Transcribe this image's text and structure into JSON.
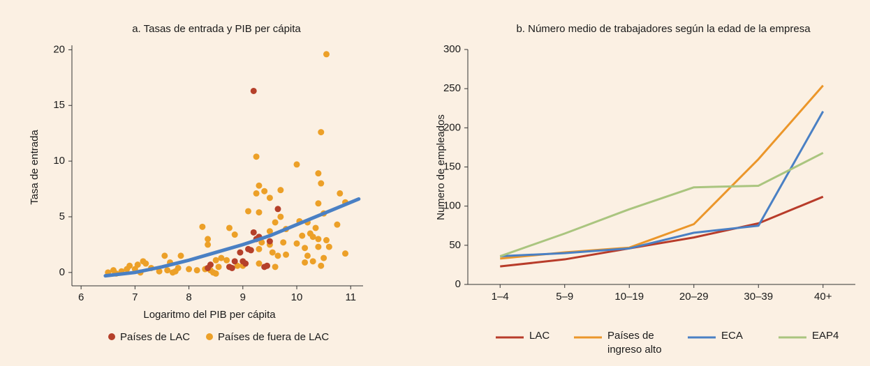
{
  "chart_data": [
    {
      "type": "scatter",
      "title": "a. Tasas de entrada y PIB per cápita",
      "x_label": "Logaritmo del PIB per cápita",
      "y_label": "Tasa de entrada",
      "xlim": [
        5.83,
        11.23
      ],
      "ylim": [
        -1.2,
        20.4
      ],
      "xticks": [
        6,
        7,
        8,
        9,
        10,
        11
      ],
      "yticks": [
        0,
        5,
        10,
        15,
        20
      ],
      "series": [
        {
          "name": "Países de LAC",
          "color": "#b5402a",
          "x": [
            9.2,
            9.65,
            9.2,
            9.25,
            9.3,
            9.1,
            9.5,
            8.95,
            9.0,
            9.05,
            8.85,
            8.75,
            8.8,
            9.4,
            9.45,
            8.35,
            8.4,
            9.15
          ],
          "values": [
            16.3,
            5.7,
            3.6,
            3.0,
            3.2,
            2.1,
            2.8,
            1.8,
            1.0,
            0.8,
            1.0,
            0.5,
            0.4,
            0.5,
            0.6,
            0.4,
            0.7,
            2.0
          ]
        },
        {
          "name": "Países de fuera de LAC",
          "color": "#eca028",
          "x": [
            10.55,
            10.45,
            9.25,
            10.0,
            10.4,
            10.45,
            9.3,
            9.4,
            9.25,
            9.7,
            10.8,
            10.4,
            9.5,
            10.9,
            9.1,
            9.3,
            9.7,
            10.5,
            9.6,
            10.05,
            10.2,
            10.35,
            10.75,
            8.25,
            8.75,
            8.85,
            9.5,
            9.8,
            10.1,
            10.25,
            10.3,
            10.4,
            10.55,
            8.35,
            8.35,
            9.35,
            9.5,
            9.75,
            10.0,
            10.15,
            10.4,
            10.6,
            10.5,
            10.2,
            10.3,
            10.15,
            10.45,
            10.9,
            9.65,
            9.8,
            9.3,
            9.55,
            8.6,
            8.7,
            8.5,
            8.9,
            9.3,
            9.6,
            9.0,
            8.55,
            8.4,
            8.3,
            8.15,
            8.0,
            7.8,
            7.85,
            7.55,
            7.65,
            7.75,
            7.6,
            7.3,
            7.2,
            7.15,
            7.05,
            7.0,
            6.9,
            6.85,
            6.75,
            6.6,
            6.5,
            6.65,
            7.1,
            7.45,
            8.45,
            8.5,
            7.7
          ],
          "values": [
            19.6,
            12.6,
            10.4,
            9.7,
            8.9,
            8.0,
            7.8,
            7.3,
            7.1,
            7.4,
            7.1,
            6.2,
            6.7,
            6.3,
            5.5,
            5.4,
            5.0,
            5.3,
            4.5,
            4.6,
            4.5,
            4.0,
            4.3,
            4.1,
            4.0,
            3.4,
            3.7,
            3.9,
            3.3,
            3.5,
            3.2,
            3.0,
            2.9,
            3.0,
            2.5,
            2.7,
            2.5,
            2.7,
            2.6,
            2.2,
            2.3,
            2.3,
            1.3,
            1.5,
            1.0,
            0.9,
            0.6,
            1.7,
            1.5,
            1.6,
            2.1,
            1.8,
            1.3,
            1.1,
            1.1,
            0.6,
            0.8,
            0.5,
            0.6,
            0.5,
            0.2,
            0.3,
            0.2,
            0.3,
            0.4,
            1.5,
            1.5,
            0.9,
            0.1,
            0.2,
            0.4,
            0.8,
            1.0,
            0.7,
            0.3,
            0.6,
            0.3,
            0.1,
            0.2,
            0.0,
            -0.1,
            0.0,
            0.1,
            0.0,
            -0.1,
            0.0
          ]
        }
      ],
      "trend": {
        "color": "#4a80c4",
        "x": [
          6.45,
          7,
          7.5,
          8,
          8.5,
          9,
          9.5,
          10,
          10.5,
          11.15
        ],
        "values": [
          -0.3,
          0.0,
          0.5,
          1.1,
          1.8,
          2.5,
          3.3,
          4.3,
          5.3,
          6.6
        ]
      }
    },
    {
      "type": "line",
      "title": "b. Número medio de trabajadores según la edad de la empresa",
      "y_label": "Numero de empleados",
      "categories": [
        "1–4",
        "5–9",
        "10–19",
        "20–29",
        "30–39",
        "40+"
      ],
      "ylim": [
        0,
        300
      ],
      "yticks": [
        0,
        50,
        100,
        150,
        200,
        250,
        300
      ],
      "series": [
        {
          "name": "LAC",
          "color": "#b83c2a",
          "values": [
            23,
            32,
            46,
            60,
            78,
            112
          ]
        },
        {
          "name": "Países de ingreso alto",
          "color": "#eb962a",
          "values": [
            33,
            41,
            47,
            77,
            160,
            254
          ]
        },
        {
          "name": "ECA",
          "color": "#4a80c4",
          "values": [
            36,
            40,
            46,
            66,
            75,
            221
          ]
        },
        {
          "name": "EAP4",
          "color": "#aac57f",
          "values": [
            36,
            65,
            96,
            124,
            126,
            168
          ]
        }
      ]
    }
  ]
}
